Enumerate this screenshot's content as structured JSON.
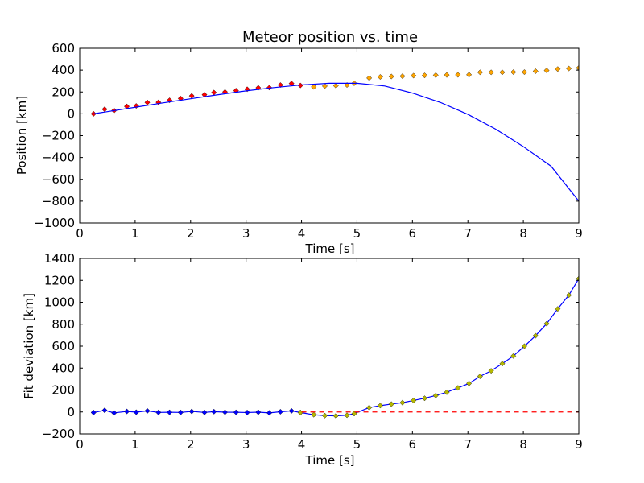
{
  "chart_data": [
    {
      "type": "scatter",
      "title": "Meteor position vs. time",
      "xlabel": "Time [s]",
      "ylabel": "Position [km]",
      "xlim": [
        0,
        9
      ],
      "ylim": [
        -1000,
        600
      ],
      "xticks": [
        "0",
        "1",
        "2",
        "3",
        "4",
        "5",
        "6",
        "7",
        "8",
        "9"
      ],
      "yticks": [
        "−1000",
        "−800",
        "−600",
        "−400",
        "−200",
        "0",
        "200",
        "400",
        "600"
      ],
      "grid": false,
      "series": [
        {
          "kind": "points",
          "marker": "diamond",
          "color": "#ff0000",
          "x": [
            0.25,
            0.45,
            0.62,
            0.85,
            1.02,
            1.22,
            1.42,
            1.62,
            1.82,
            2.02,
            2.25,
            2.42,
            2.62,
            2.82,
            3.02,
            3.22,
            3.42,
            3.62,
            3.82,
            3.98
          ],
          "y": [
            0,
            42,
            30,
            68,
            72,
            104,
            105,
            124,
            140,
            164,
            175,
            195,
            200,
            212,
            225,
            238,
            240,
            264,
            278,
            260
          ]
        },
        {
          "kind": "points",
          "marker": "diamond",
          "color": "#ffa500",
          "x": [
            4.22,
            4.42,
            4.62,
            4.82,
            4.95,
            5.22,
            5.42,
            5.62,
            5.82,
            6.02,
            6.22,
            6.42,
            6.62,
            6.82,
            7.02,
            7.22,
            7.42,
            7.62,
            7.82,
            8.02,
            8.22,
            8.42,
            8.62,
            8.82,
            9.0
          ],
          "y": [
            247,
            254,
            258,
            264,
            280,
            328,
            338,
            342,
            345,
            350,
            352,
            354,
            356,
            357,
            358,
            380,
            380,
            380,
            382,
            382,
            390,
            397,
            410,
            415,
            420
          ]
        },
        {
          "kind": "line",
          "color": "#0000ff",
          "x": [
            0.25,
            0.5,
            1.0,
            1.5,
            2.0,
            2.5,
            3.0,
            3.5,
            4.0,
            4.5,
            5.0,
            5.5,
            6.0,
            6.5,
            7.0,
            7.5,
            8.0,
            8.5,
            9.0
          ],
          "y": [
            0,
            20,
            60,
            100,
            138,
            175,
            210,
            240,
            265,
            280,
            280,
            255,
            190,
            105,
            -5,
            -140,
            -300,
            -480,
            -800
          ]
        }
      ]
    },
    {
      "type": "line",
      "title": "",
      "xlabel": "Time [s]",
      "ylabel": "Fit deviation [km]",
      "xlim": [
        0,
        9
      ],
      "ylim": [
        -200,
        1400
      ],
      "xticks": [
        "0",
        "1",
        "2",
        "3",
        "4",
        "5",
        "6",
        "7",
        "8",
        "9"
      ],
      "yticks": [
        "−200",
        "0",
        "200",
        "400",
        "600",
        "800",
        "1000",
        "1200",
        "1400"
      ],
      "grid": false,
      "series": [
        {
          "kind": "line-points",
          "marker": "diamond",
          "color": "#0000ff",
          "marker_color": "#0000ff",
          "x": [
            0.25,
            0.45,
            0.62,
            0.85,
            1.02,
            1.22,
            1.42,
            1.62,
            1.82,
            2.02,
            2.25,
            2.42,
            2.62,
            2.82,
            3.02,
            3.22,
            3.42,
            3.62,
            3.82,
            3.98
          ],
          "y": [
            -5,
            15,
            -8,
            5,
            -2,
            10,
            -4,
            -3,
            -4,
            5,
            -4,
            3,
            -2,
            -3,
            -5,
            -2,
            -8,
            2,
            10,
            -5
          ]
        },
        {
          "kind": "line-points",
          "marker": "diamond",
          "color": "#0000ff",
          "marker_color": "#b5b800",
          "x": [
            3.98,
            4.22,
            4.42,
            4.62,
            4.82,
            4.95,
            5.22,
            5.42,
            5.62,
            5.82,
            6.02,
            6.22,
            6.42,
            6.62,
            6.82,
            7.02,
            7.22,
            7.42,
            7.62,
            7.82,
            8.02,
            8.22,
            8.42,
            8.62,
            8.82,
            9.0
          ],
          "y": [
            -5,
            -25,
            -33,
            -35,
            -30,
            -15,
            40,
            58,
            72,
            85,
            105,
            125,
            150,
            180,
            220,
            260,
            325,
            375,
            440,
            510,
            600,
            695,
            805,
            940,
            1065,
            1215
          ]
        },
        {
          "kind": "dashed-line",
          "color": "#ff0000",
          "x": [
            4.0,
            9.0
          ],
          "y": [
            0,
            0
          ]
        }
      ]
    }
  ]
}
